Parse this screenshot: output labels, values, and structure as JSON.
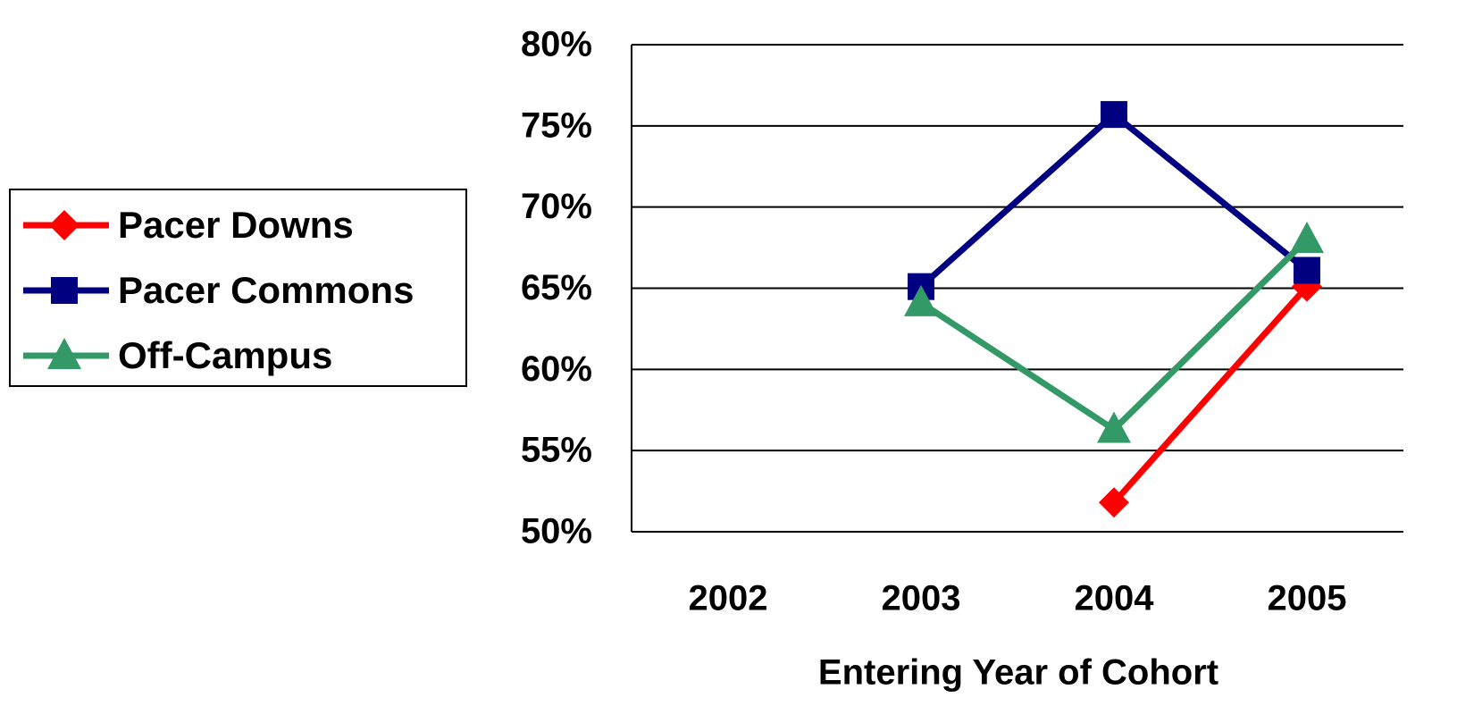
{
  "chart_data": {
    "type": "line",
    "x_label": "Entering Year of Cohort",
    "categories": [
      "2002",
      "2003",
      "2004",
      "2005"
    ],
    "series": [
      {
        "name": "Pacer Downs",
        "color": "#ff0000",
        "marker": "diamond",
        "values": [
          null,
          null,
          51.8,
          65.1
        ]
      },
      {
        "name": "Pacer Commons",
        "color": "#000080",
        "marker": "square",
        "values": [
          null,
          65.1,
          75.7,
          66.1
        ]
      },
      {
        "name": "Off-Campus",
        "color": "#339966",
        "marker": "triangle",
        "values": [
          null,
          64.1,
          56.3,
          68.0
        ]
      }
    ],
    "ylim": [
      50,
      80
    ],
    "yticks": [
      {
        "value": 50,
        "label": "50%"
      },
      {
        "value": 55,
        "label": "55%"
      },
      {
        "value": 60,
        "label": "60%"
      },
      {
        "value": 65,
        "label": "65%"
      },
      {
        "value": 70,
        "label": "70%"
      },
      {
        "value": 75,
        "label": "75%"
      },
      {
        "value": 80,
        "label": "80%"
      }
    ],
    "grid": true,
    "legend": "left"
  }
}
